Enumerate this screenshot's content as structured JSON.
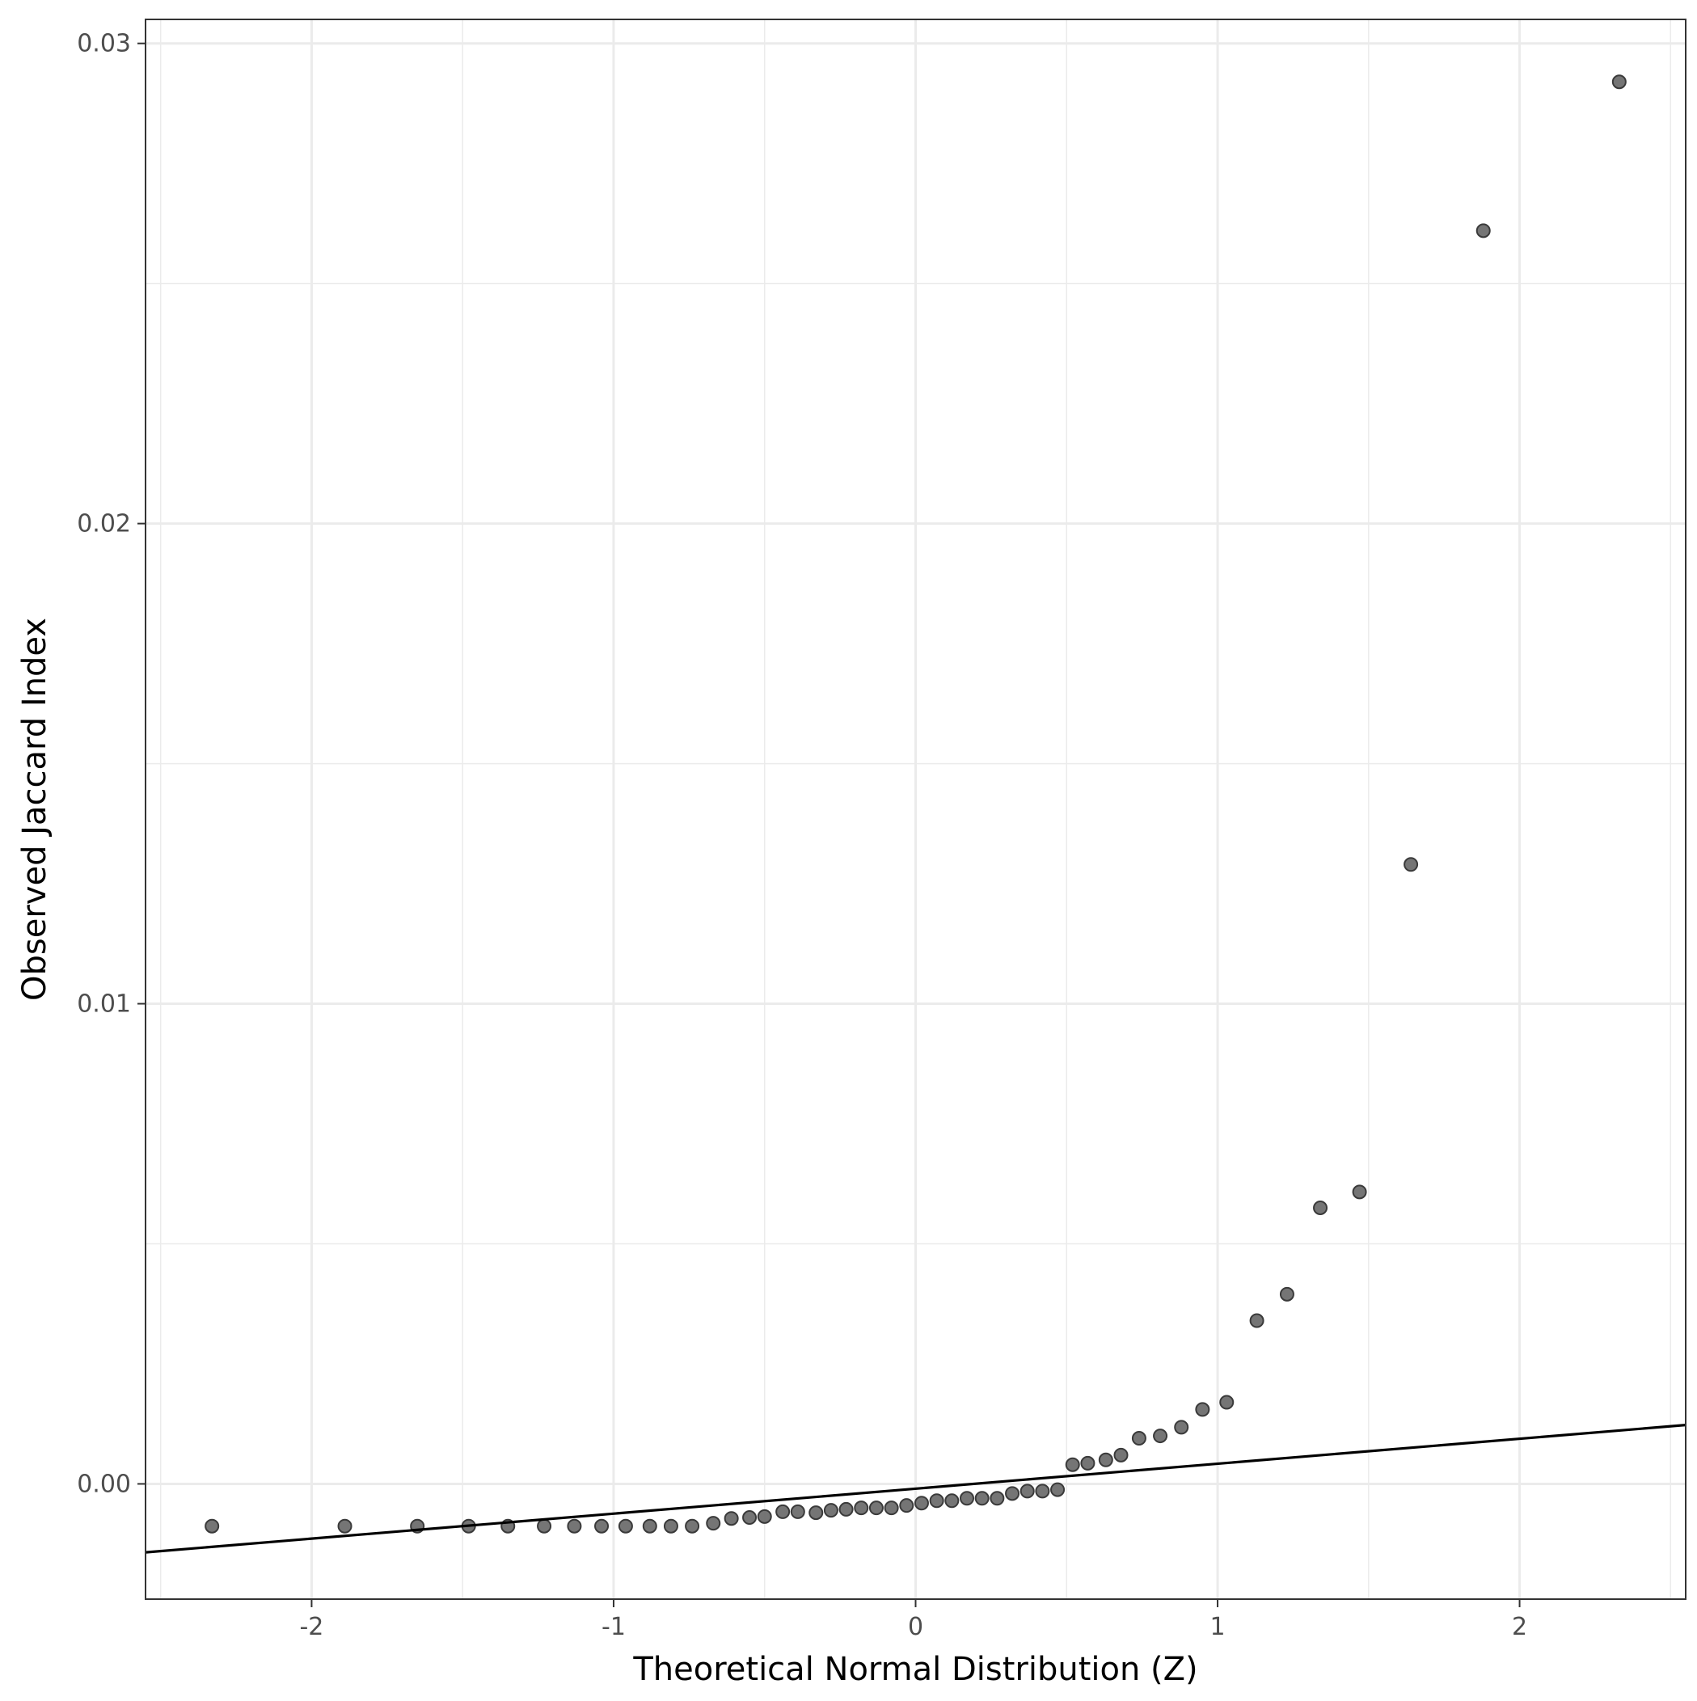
{
  "chart_data": {
    "type": "scatter",
    "title": "",
    "xlabel": "Theoretical Normal Distribution (Z)",
    "ylabel": "Observed Jaccard Index",
    "xlim": [
      -2.55,
      2.55
    ],
    "ylim": [
      -0.0024,
      0.0305
    ],
    "x_ticks": [
      -2,
      -1,
      0,
      1,
      2
    ],
    "x_tick_labels": [
      "-2",
      "-1",
      "0",
      "1",
      "2"
    ],
    "y_ticks": [
      0.0,
      0.01,
      0.02,
      0.03
    ],
    "y_tick_labels": [
      "0.00",
      "0.01",
      "0.02",
      "0.03"
    ],
    "grid": true,
    "legend": "none",
    "colors": {
      "point_fill": "#6e6e6e",
      "point_stroke": "#3a3a3a",
      "line": "#000000",
      "grid": "#ebebeb",
      "panel_border": "#333333"
    },
    "reference_line": {
      "slope": 0.00052,
      "intercept": -0.0001
    },
    "points": {
      "x": [
        -2.33,
        -1.89,
        -1.65,
        -1.48,
        -1.35,
        -1.23,
        -1.13,
        -1.04,
        -0.96,
        -0.88,
        -0.81,
        -0.74,
        -0.67,
        -0.61,
        -0.55,
        -0.5,
        -0.44,
        -0.39,
        -0.33,
        -0.28,
        -0.23,
        -0.18,
        -0.13,
        -0.08,
        -0.03,
        0.02,
        0.07,
        0.12,
        0.17,
        0.22,
        0.27,
        0.32,
        0.37,
        0.42,
        0.47,
        0.52,
        0.57,
        0.63,
        0.68,
        0.74,
        0.81,
        0.88,
        0.95,
        1.03,
        1.13,
        1.23,
        1.34,
        1.47,
        1.64,
        1.88,
        2.33
      ],
      "y": [
        -0.00088,
        -0.00088,
        -0.00088,
        -0.00088,
        -0.00088,
        -0.00088,
        -0.00088,
        -0.00088,
        -0.00088,
        -0.00088,
        -0.00088,
        -0.00088,
        -0.00082,
        -0.00072,
        -0.0007,
        -0.00068,
        -0.00058,
        -0.00058,
        -0.0006,
        -0.00055,
        -0.00053,
        -0.0005,
        -0.0005,
        -0.0005,
        -0.00045,
        -0.0004,
        -0.00035,
        -0.00035,
        -0.0003,
        -0.0003,
        -0.0003,
        -0.0002,
        -0.00015,
        -0.00015,
        -0.00012,
        0.0004,
        0.00043,
        0.0005,
        0.0006,
        0.00095,
        0.001,
        0.00118,
        0.00155,
        0.0017,
        0.0034,
        0.00395,
        0.00575,
        0.00608,
        0.0129,
        0.0261,
        0.0292
      ]
    }
  }
}
